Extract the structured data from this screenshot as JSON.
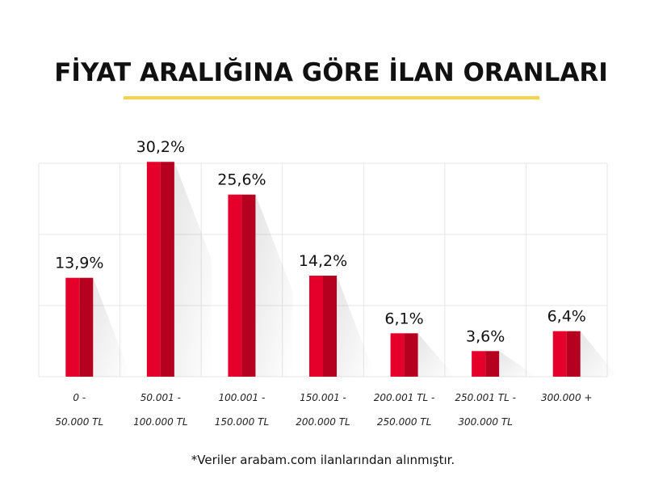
{
  "title": "FİYAT ARALIĞINA GÖRE İLAN ORANLARI",
  "footnote": "*Veriler arabam.com ilanlarından alınmıştır.",
  "colors": {
    "accent_underline": "#f5d547",
    "bar_main": "#e4002b",
    "bar_dark": "#b5001f",
    "grid": "#e6e6e6"
  },
  "chart_data": {
    "type": "bar",
    "title": "FİYAT ARALIĞINA GÖRE İLAN ORANLARI",
    "xlabel": "",
    "ylabel": "",
    "ylim": [
      0,
      30
    ],
    "grid": true,
    "categories": [
      [
        "0 -",
        "50.000 TL"
      ],
      [
        "50.001 -",
        "100.000 TL"
      ],
      [
        "100.001 -",
        "150.000 TL"
      ],
      [
        "150.001 -",
        "200.000 TL"
      ],
      [
        "200.001 TL -",
        "250.000 TL"
      ],
      [
        "250.001 TL -",
        "300.000 TL"
      ],
      [
        "300.000 +"
      ]
    ],
    "values": [
      13.9,
      30.2,
      25.6,
      14.2,
      6.1,
      3.6,
      6.4
    ],
    "value_labels": [
      "13,9%",
      "30,2%",
      "25,6%",
      "14,2%",
      "6,1%",
      "3,6%",
      "6,4%"
    ],
    "gridlines": [
      0,
      10,
      20,
      30
    ]
  }
}
